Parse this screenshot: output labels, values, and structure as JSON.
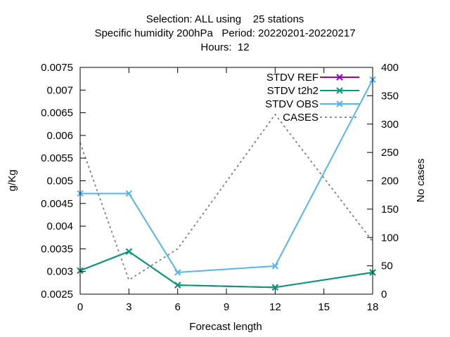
{
  "chart_data": {
    "type": "line",
    "title_lines": [
      "Selection: ALL using    25 stations",
      "Specific humidity 200hPa   Period: 20220201-20220217",
      "Hours:  12"
    ],
    "xlabel": "Forecast length",
    "ylabel": "g/Kg",
    "y2label": "No cases",
    "xlim": [
      0,
      18
    ],
    "ylim": [
      0.0025,
      0.0075
    ],
    "y2lim": [
      0,
      400
    ],
    "xticks": [
      "0",
      "3",
      "6",
      "9",
      "12",
      "15",
      "18"
    ],
    "yticks": [
      "0.0025",
      "0.003",
      "0.0035",
      "0.004",
      "0.0045",
      "0.005",
      "0.0055",
      "0.006",
      "0.0065",
      "0.007",
      "0.0075"
    ],
    "y2ticks": [
      "0",
      "50",
      "100",
      "150",
      "200",
      "250",
      "300",
      "350",
      "400"
    ],
    "grid": false,
    "legend_position": "top-right",
    "x": [
      0,
      3,
      6,
      12,
      18
    ],
    "series": [
      {
        "name": "STDV REF",
        "axis": "y",
        "color": "#9400d3",
        "marker": "x",
        "values": [
          0.00302,
          0.00344,
          0.0027,
          0.00265,
          0.00298
        ]
      },
      {
        "name": "STDV t2h2",
        "axis": "y",
        "color": "#009e73",
        "marker": "x",
        "values": [
          0.00302,
          0.00344,
          0.0027,
          0.00265,
          0.00298
        ]
      },
      {
        "name": "STDV OBS",
        "axis": "y",
        "color": "#56b4e9",
        "marker": "x",
        "values": [
          0.00472,
          0.00472,
          0.00298,
          0.00312,
          0.00723
        ]
      },
      {
        "name": "CASES",
        "axis": "y2",
        "color": "#808080",
        "dashed": true,
        "values": [
          267,
          25,
          80,
          317,
          93
        ]
      }
    ]
  }
}
